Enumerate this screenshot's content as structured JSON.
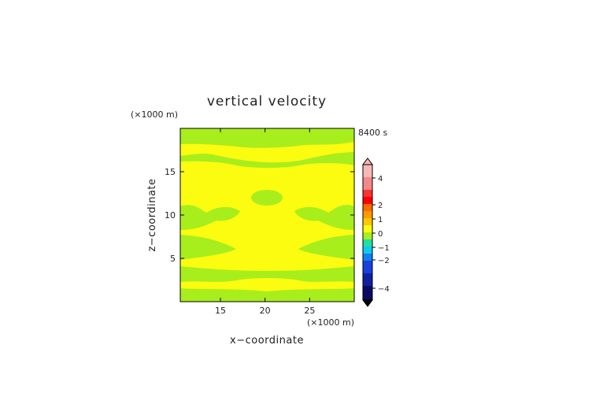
{
  "chart_data": {
    "type": "heatmap",
    "title": "vertical velocity",
    "xlabel": "x−coordinate",
    "ylabel": "z−coordinate",
    "x_unit": "(×1000 m)",
    "y_unit": "(×1000 m)",
    "time_label": "8400 s",
    "xlim": [
      10.5,
      30
    ],
    "ylim": [
      0,
      20
    ],
    "x_ticks": [
      15,
      20,
      25
    ],
    "y_ticks": [
      5,
      10,
      15
    ],
    "colorbar": {
      "tick_labels": [
        "4",
        "2",
        "1",
        "0",
        "−1",
        "−2",
        "−4"
      ],
      "extend": "both"
    },
    "colors": {
      "background_yellow": "#fcfc10",
      "band_green": "#a8ee1c",
      "frame": "#000000"
    }
  }
}
